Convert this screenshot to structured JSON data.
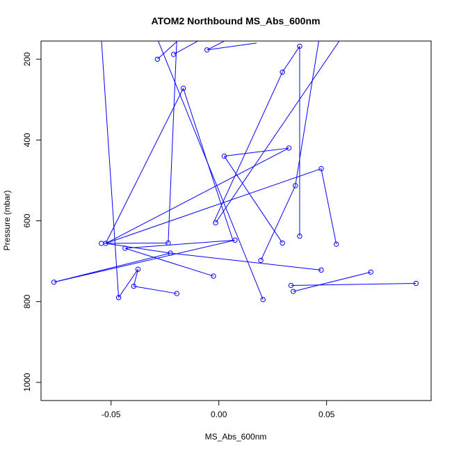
{
  "chart_data": {
    "type": "line",
    "title": "ATOM2 Northbound MS_Abs_600nm",
    "xlabel": "MS_Abs_600nm",
    "ylabel": "Pressure (mbar)",
    "xlim": [
      -0.0825,
      0.0985
    ],
    "ylim": [
      1045,
      155
    ],
    "y_inverted": true,
    "xticks": [
      -0.05,
      0.0,
      0.05
    ],
    "xtick_labels": [
      "-0.05",
      "0.00",
      "0.05"
    ],
    "yticks": [
      200,
      400,
      600,
      800,
      1000
    ],
    "ytick_labels": [
      "200",
      "400",
      "600",
      "800",
      "1000"
    ],
    "grid": false,
    "series": [
      {
        "color": "#0000ff",
        "markers": "open-circle",
        "x": [
          -0.0525,
          -0.028,
          -0.0115,
          0.0015,
          -0.052,
          -0.017,
          0.0335,
          0.0345,
          -0.0465,
          -0.0285,
          -0.005,
          0.0475,
          0.0045,
          0.0335,
          -0.0195,
          0.0225,
          0.0495,
          -0.0445,
          0.0705,
          0.0925,
          0.0335,
          -0.0225,
          -0.0385,
          0.0135,
          0.0305,
          0.037,
          0.0465,
          -0.0485,
          0.0025,
          -0.0285,
          0.0365,
          0.0195,
          -0.053,
          0.0005,
          -0.0025,
          0.0095,
          0.0555,
          0.0365,
          -0.007,
          0.0275,
          -0.0395,
          -0.0335,
          0.0005,
          0.0355,
          0.0215,
          -0.0185,
          -0.055,
          -0.0215,
          -0.0085,
          -0.0415,
          0.0005,
          -0.0225,
          -0.0765,
          0.0085,
          -0.0535,
          -0.0205,
          0.0305,
          -0.0275,
          0.0015,
          0.0375,
          -0.0025,
          -0.0205,
          0.0195
        ],
        "y": [
          155,
          200,
          135,
          155,
          655,
          273,
          420,
          513,
          155,
          795,
          155,
          471,
          155,
          762,
          155,
          700,
          155,
          668,
          155,
          755,
          776,
          155,
          765,
          155,
          650,
          155,
          155,
          155,
          440,
          155,
          640,
          155,
          656,
          605,
          155,
          650,
          155,
          170,
          155,
          715,
          720,
          155,
          155,
          155,
          155,
          182,
          155,
          658,
          155,
          679,
          155,
          680,
          752,
          155,
          655,
          155,
          235,
          155,
          155,
          155,
          785,
          155,
          795
        ]
      }
    ],
    "points": [
      {
        "x": -0.0285,
        "y": 200
      },
      {
        "x": -0.021,
        "y": 188
      },
      {
        "x": -0.0055,
        "y": 177
      },
      {
        "x": -0.0165,
        "y": 272
      },
      {
        "x": 0.0375,
        "y": 168
      },
      {
        "x": 0.0295,
        "y": 232
      },
      {
        "x": 0.0325,
        "y": 420
      },
      {
        "x": 0.0025,
        "y": 440
      },
      {
        "x": 0.0475,
        "y": 471
      },
      {
        "x": 0.0355,
        "y": 513
      },
      {
        "x": -0.0015,
        "y": 605
      },
      {
        "x": 0.0375,
        "y": 638
      },
      {
        "x": 0.0075,
        "y": 648
      },
      {
        "x": -0.0235,
        "y": 655
      },
      {
        "x": -0.0545,
        "y": 656
      },
      {
        "x": -0.0525,
        "y": 656
      },
      {
        "x": 0.0295,
        "y": 655
      },
      {
        "x": 0.0545,
        "y": 658
      },
      {
        "x": -0.0435,
        "y": 668
      },
      {
        "x": -0.0225,
        "y": 680
      },
      {
        "x": 0.0195,
        "y": 698
      },
      {
        "x": -0.0375,
        "y": 720
      },
      {
        "x": 0.0475,
        "y": 722
      },
      {
        "x": 0.0705,
        "y": 727
      },
      {
        "x": -0.0025,
        "y": 737
      },
      {
        "x": -0.0765,
        "y": 752
      },
      {
        "x": 0.0915,
        "y": 755
      },
      {
        "x": 0.0335,
        "y": 760
      },
      {
        "x": -0.0395,
        "y": 762
      },
      {
        "x": 0.0345,
        "y": 775
      },
      {
        "x": -0.0195,
        "y": 780
      },
      {
        "x": -0.0465,
        "y": 790
      },
      {
        "x": 0.0205,
        "y": 795
      }
    ],
    "segments": [
      {
        "x1": -0.0285,
        "y1": 200,
        "x2": -0.0165,
        "y2": 142
      },
      {
        "x1": -0.021,
        "y1": 188,
        "x2": -0.008,
        "y2": 150
      },
      {
        "x1": -0.0055,
        "y1": 177,
        "x2": 0.0045,
        "y2": 150
      },
      {
        "x1": -0.0055,
        "y1": 177,
        "x2": 0.0175,
        "y2": 160
      },
      {
        "x1": -0.0165,
        "y1": 272,
        "x2": -0.0525,
        "y2": 656
      },
      {
        "x1": -0.0165,
        "y1": 272,
        "x2": 0.0065,
        "y2": 648
      },
      {
        "x1": 0.0375,
        "y1": 168,
        "x2": 0.0295,
        "y2": 232
      },
      {
        "x1": 0.0375,
        "y1": 168,
        "x2": 0.0375,
        "y2": 638
      },
      {
        "x1": 0.0295,
        "y1": 232,
        "x2": -0.0025,
        "y2": 605
      },
      {
        "x1": 0.0325,
        "y1": 420,
        "x2": -0.0525,
        "y2": 656
      },
      {
        "x1": 0.0325,
        "y1": 420,
        "x2": 0.0025,
        "y2": 440
      },
      {
        "x1": 0.0025,
        "y1": 440,
        "x2": 0.0295,
        "y2": 655
      },
      {
        "x1": 0.0475,
        "y1": 471,
        "x2": -0.0525,
        "y2": 656
      },
      {
        "x1": 0.0475,
        "y1": 471,
        "x2": 0.0545,
        "y2": 658
      },
      {
        "x1": 0.0355,
        "y1": 513,
        "x2": 0.0195,
        "y2": 698
      },
      {
        "x1": 0.0355,
        "y1": 513,
        "x2": 0.0465,
        "y2": 150
      },
      {
        "x1": -0.0015,
        "y1": 605,
        "x2": 0.0565,
        "y2": 150
      },
      {
        "x1": -0.0235,
        "y1": 655,
        "x2": -0.0535,
        "y2": 656
      },
      {
        "x1": -0.0235,
        "y1": 655,
        "x2": -0.0195,
        "y2": 150
      },
      {
        "x1": -0.0435,
        "y1": 668,
        "x2": 0.0075,
        "y2": 648
      },
      {
        "x1": -0.0435,
        "y1": 668,
        "x2": -0.0025,
        "y2": 737
      },
      {
        "x1": -0.0225,
        "y1": 680,
        "x2": -0.0525,
        "y2": 656
      },
      {
        "x1": -0.0225,
        "y1": 680,
        "x2": 0.0475,
        "y2": 722
      },
      {
        "x1": -0.0765,
        "y1": 752,
        "x2": 0.0075,
        "y2": 648
      },
      {
        "x1": -0.0765,
        "y1": 752,
        "x2": -0.0225,
        "y2": 680
      },
      {
        "x1": 0.0915,
        "y1": 755,
        "x2": 0.0335,
        "y2": 760
      },
      {
        "x1": 0.0345,
        "y1": 775,
        "x2": 0.0705,
        "y2": 727
      },
      {
        "x1": -0.0375,
        "y1": 720,
        "x2": -0.0395,
        "y2": 762
      },
      {
        "x1": -0.0395,
        "y1": 762,
        "x2": -0.0195,
        "y2": 780
      },
      {
        "x1": -0.0465,
        "y1": 790,
        "x2": -0.0545,
        "y2": 150
      },
      {
        "x1": -0.0465,
        "y1": 790,
        "x2": -0.0375,
        "y2": 720
      },
      {
        "x1": 0.0205,
        "y1": 795,
        "x2": -0.0285,
        "y2": 150
      }
    ]
  }
}
